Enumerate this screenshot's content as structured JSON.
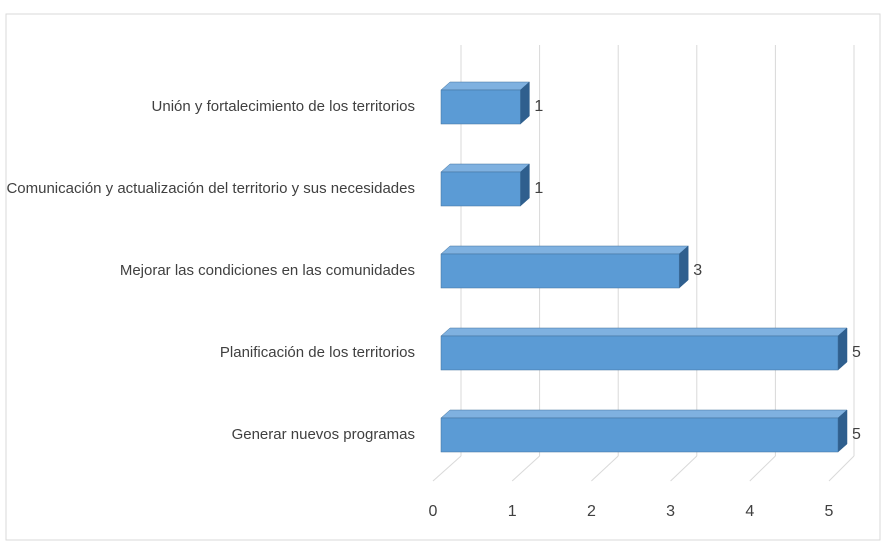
{
  "chart_data": {
    "type": "bar3d_horizontal",
    "categories": [
      "Unión y fortalecimiento de los territorios",
      "Comunicación y actualización del territorio y sus necesidades",
      "Mejorar las condiciones en las comunidades",
      "Planificación de los territorios",
      "Generar nuevos programas"
    ],
    "values": [
      1,
      1,
      3,
      5,
      5
    ],
    "color": "#5b9bd5",
    "xlim": [
      0,
      5
    ],
    "xticks": [
      0,
      1,
      2,
      3,
      4,
      5
    ],
    "grid": true
  }
}
